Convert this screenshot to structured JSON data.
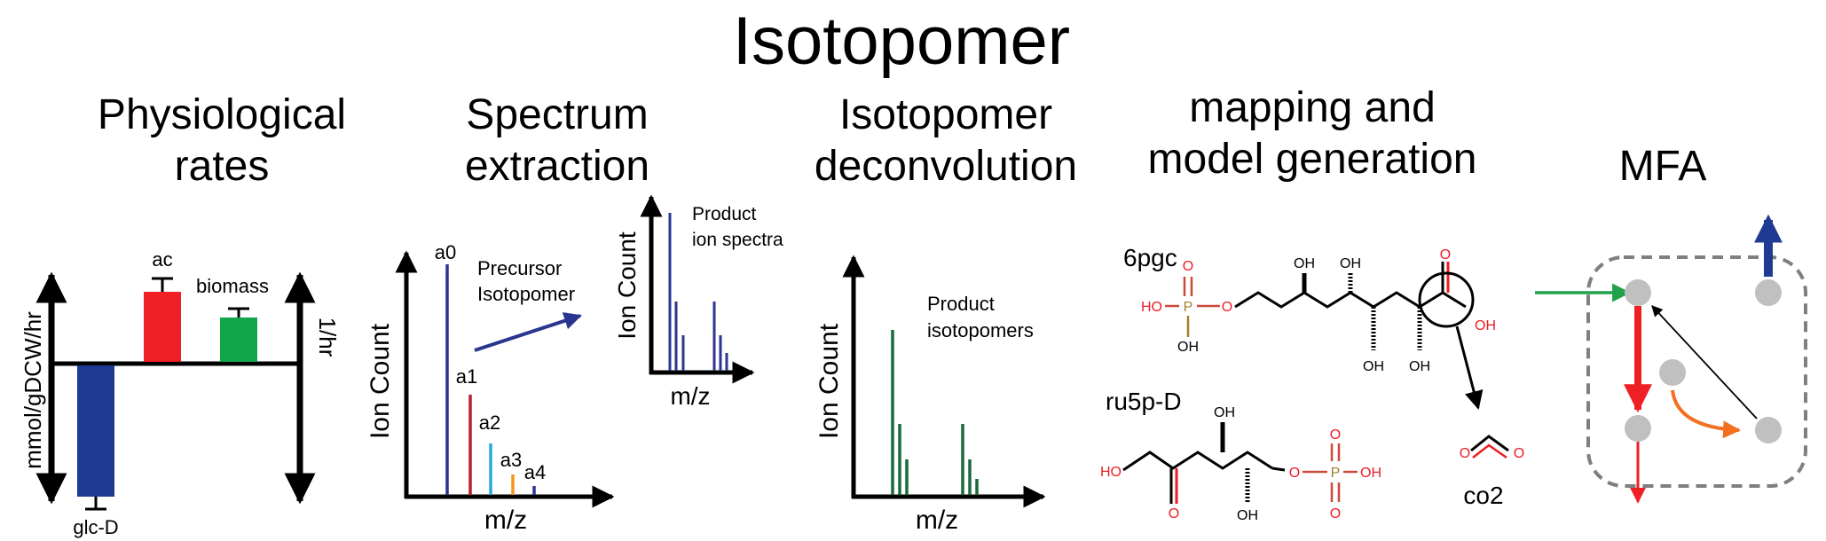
{
  "title": "Isotopomer",
  "panels": {
    "rates": {
      "title_line1": "Physiological",
      "title_line2": "rates",
      "ylabel_left": "mmol/gDCW/hr",
      "ylabel_right": "1/hr",
      "bars": [
        {
          "label": "glc-D",
          "color": "#1f3a93"
        },
        {
          "label": "ac",
          "color": "#ee2025"
        },
        {
          "label": "biomass",
          "color": "#12a64b"
        }
      ]
    },
    "spectrum": {
      "title_line1": "Spectrum",
      "title_line2": "extraction",
      "ylabel": "Ion Count",
      "xlabel": "m/z",
      "peaks": [
        {
          "label": "a0",
          "color": "#2a3590"
        },
        {
          "label": "a1",
          "color": "#b5202e"
        },
        {
          "label": "a2",
          "color": "#27a9e1"
        },
        {
          "label": "a3",
          "color": "#f7941d"
        },
        {
          "label": "a4",
          "color": "#2a3590"
        }
      ],
      "precursor_line1": "Precursor",
      "precursor_line2": "Isotopomer",
      "product_line1": "Product",
      "product_line2": "ion spectra",
      "product_ylabel": "Ion Count",
      "product_xlabel": "m/z",
      "product_color": "#2a3590"
    },
    "deconv": {
      "title_line1": "Isotopomer",
      "title_line2": "deconvolution",
      "ylabel": "Ion Count",
      "xlabel": "m/z",
      "product_line1": "Product",
      "product_line2": "isotopomers",
      "peak_color": "#1a6b3a"
    },
    "mapping": {
      "title_line1": "mapping and",
      "title_line2": "model generation",
      "mol1_name": "6pgc",
      "mol2_name": "ru5p-D",
      "mol3_name": "co2",
      "atom_O": "O",
      "atom_P": "P",
      "atom_OH": "OH",
      "atom_HO": "HO",
      "oxygen_color": "#ee1c24",
      "phosphorus_color": "#a0802a"
    },
    "mfa": {
      "title": "MFA",
      "colors": {
        "in_arrow": "#21a14a",
        "down_arrow": "#ee2025",
        "side_arrow": "#f37021",
        "out_arrow": "#1f3a93",
        "node": "#c0c0c0",
        "box": "#7f7f7f"
      }
    }
  }
}
